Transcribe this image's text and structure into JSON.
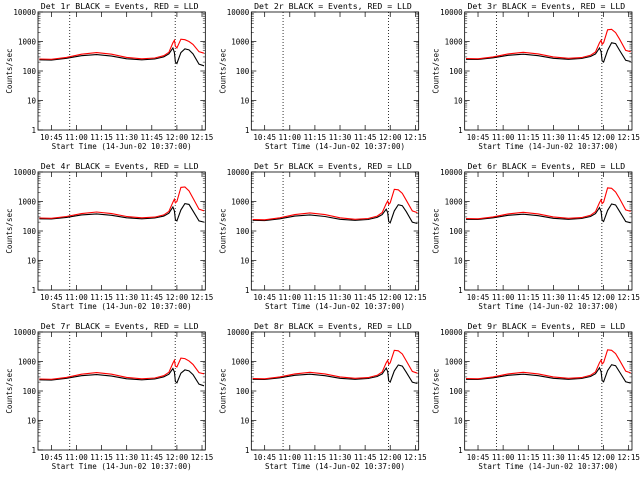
{
  "colors": {
    "events": "#000000",
    "lld": "#ff0000",
    "axes": "#000000",
    "background": "#ffffff"
  },
  "chart_data": [
    {
      "type": "line",
      "id": "det-1r",
      "title": "Det 1r BLACK = Events, RED = LLD",
      "xlabel": "Start Time (14-Jun-02 10:37:00)",
      "ylabel": "Counts/sec",
      "yscale": "log",
      "xlim": [
        10.617,
        12.283
      ],
      "ylim": [
        1,
        10000
      ],
      "xticks": [
        "10:45",
        "11:00",
        "11:15",
        "11:30",
        "11:45",
        "12:00",
        "12:15"
      ],
      "yticks": [
        "1",
        "10",
        "100",
        "1000",
        "10000"
      ],
      "vlines": [
        10.933,
        11.983
      ],
      "series": [
        {
          "name": "Events",
          "x": [
            10.63,
            10.75,
            10.9,
            11.05,
            11.2,
            11.35,
            11.5,
            11.65,
            11.78,
            11.87,
            11.92,
            11.96,
            11.975,
            11.985,
            12.0,
            12.04,
            12.08,
            12.12,
            12.16,
            12.22,
            12.27
          ],
          "y": [
            240,
            235,
            270,
            330,
            360,
            320,
            260,
            240,
            255,
            300,
            380,
            600,
            420,
            200,
            180,
            420,
            560,
            520,
            380,
            170,
            150
          ]
        },
        {
          "name": "LLD",
          "x": [
            10.63,
            10.75,
            10.9,
            11.05,
            11.2,
            11.35,
            11.5,
            11.65,
            11.78,
            11.87,
            11.92,
            11.96,
            11.975,
            11.985,
            12.0,
            12.04,
            12.08,
            12.12,
            12.16,
            12.22,
            12.27
          ],
          "y": [
            255,
            250,
            290,
            370,
            420,
            370,
            290,
            260,
            275,
            330,
            430,
            900,
            1100,
            700,
            600,
            1200,
            1150,
            1000,
            800,
            450,
            400
          ]
        }
      ]
    },
    {
      "type": "line",
      "id": "det-2r",
      "title": "Det 2r BLACK = Events, RED = LLD",
      "xlabel": "Start Time (14-Jun-02 10:37:00)",
      "ylabel": "Counts/sec",
      "yscale": "log",
      "xlim": [
        10.617,
        12.283
      ],
      "ylim": [
        1,
        10000
      ],
      "xticks": [
        "10:45",
        "11:00",
        "11:15",
        "11:30",
        "11:45",
        "12:00",
        "12:15"
      ],
      "yticks": [
        "1",
        "10",
        "100",
        "1000",
        "10000"
      ],
      "vlines": [
        10.933,
        11.983
      ],
      "series": [
        {
          "name": "Events",
          "x": [],
          "y": []
        },
        {
          "name": "LLD",
          "x": [],
          "y": []
        }
      ]
    },
    {
      "type": "line",
      "id": "det-3r",
      "title": "Det 3r BLACK = Events, RED = LLD",
      "xlabel": "Start Time (14-Jun-02 10:37:00)",
      "ylabel": "Counts/sec",
      "yscale": "log",
      "xlim": [
        10.617,
        12.283
      ],
      "ylim": [
        1,
        10000
      ],
      "xticks": [
        "10:45",
        "11:00",
        "11:15",
        "11:30",
        "11:45",
        "12:00",
        "12:15"
      ],
      "yticks": [
        "1",
        "10",
        "100",
        "1000",
        "10000"
      ],
      "vlines": [
        10.933,
        11.983
      ],
      "series": [
        {
          "name": "Events",
          "x": [
            10.63,
            10.75,
            10.9,
            11.05,
            11.2,
            11.35,
            11.5,
            11.65,
            11.78,
            11.87,
            11.92,
            11.96,
            11.975,
            11.985,
            12.0,
            12.04,
            12.08,
            12.12,
            12.16,
            12.22,
            12.27
          ],
          "y": [
            250,
            245,
            280,
            340,
            370,
            330,
            270,
            250,
            265,
            310,
            380,
            600,
            450,
            220,
            200,
            500,
            900,
            850,
            500,
            230,
            210
          ]
        },
        {
          "name": "LLD",
          "x": [
            10.63,
            10.75,
            10.9,
            11.05,
            11.2,
            11.35,
            11.5,
            11.65,
            11.78,
            11.87,
            11.92,
            11.96,
            11.975,
            11.985,
            12.0,
            12.04,
            12.08,
            12.12,
            12.16,
            12.22,
            12.27
          ],
          "y": [
            265,
            260,
            300,
            380,
            430,
            380,
            300,
            270,
            285,
            340,
            440,
            900,
            1100,
            800,
            900,
            2500,
            2600,
            2000,
            1200,
            500,
            450
          ]
        }
      ]
    },
    {
      "type": "line",
      "id": "det-4r",
      "title": "Det 4r BLACK = Events, RED = LLD",
      "xlabel": "Start Time (14-Jun-02 10:37:00)",
      "ylabel": "Counts/sec",
      "yscale": "log",
      "xlim": [
        10.617,
        12.283
      ],
      "ylim": [
        1,
        10000
      ],
      "xticks": [
        "10:45",
        "11:00",
        "11:15",
        "11:30",
        "11:45",
        "12:00",
        "12:15"
      ],
      "yticks": [
        "1",
        "10",
        "100",
        "1000",
        "10000"
      ],
      "vlines": [
        10.933,
        11.983
      ],
      "series": [
        {
          "name": "Events",
          "x": [
            10.63,
            10.75,
            10.9,
            11.05,
            11.2,
            11.35,
            11.5,
            11.65,
            11.78,
            11.87,
            11.92,
            11.96,
            11.975,
            11.985,
            12.0,
            12.04,
            12.08,
            12.12,
            12.16,
            12.22,
            12.27
          ],
          "y": [
            260,
            255,
            290,
            350,
            380,
            340,
            280,
            260,
            275,
            320,
            400,
            650,
            480,
            240,
            220,
            520,
            850,
            800,
            480,
            220,
            200
          ]
        },
        {
          "name": "LLD",
          "x": [
            10.63,
            10.75,
            10.9,
            11.05,
            11.2,
            11.35,
            11.5,
            11.65,
            11.78,
            11.87,
            11.92,
            11.96,
            11.975,
            11.985,
            12.0,
            12.04,
            12.08,
            12.12,
            12.16,
            12.22,
            12.27
          ],
          "y": [
            275,
            270,
            310,
            390,
            440,
            390,
            310,
            280,
            295,
            350,
            460,
            950,
            1200,
            900,
            1000,
            3000,
            3100,
            2300,
            1300,
            550,
            480
          ]
        }
      ]
    },
    {
      "type": "line",
      "id": "det-5r",
      "title": "Det 5r BLACK = Events, RED = LLD",
      "xlabel": "Start Time (14-Jun-02 10:37:00)",
      "ylabel": "Counts/sec",
      "yscale": "log",
      "xlim": [
        10.617,
        12.283
      ],
      "ylim": [
        1,
        10000
      ],
      "xticks": [
        "10:45",
        "11:00",
        "11:15",
        "11:30",
        "11:45",
        "12:00",
        "12:15"
      ],
      "yticks": [
        "1",
        "10",
        "100",
        "1000",
        "10000"
      ],
      "vlines": [
        10.933,
        11.983
      ],
      "series": [
        {
          "name": "Events",
          "x": [
            10.63,
            10.75,
            10.9,
            11.05,
            11.2,
            11.35,
            11.5,
            11.65,
            11.78,
            11.87,
            11.92,
            11.96,
            11.975,
            11.985,
            12.0,
            12.04,
            12.08,
            12.12,
            12.16,
            12.22,
            12.27
          ],
          "y": [
            230,
            225,
            260,
            320,
            350,
            310,
            250,
            230,
            245,
            290,
            360,
            550,
            420,
            210,
            190,
            480,
            780,
            720,
            450,
            200,
            180
          ]
        },
        {
          "name": "LLD",
          "x": [
            10.63,
            10.75,
            10.9,
            11.05,
            11.2,
            11.35,
            11.5,
            11.65,
            11.78,
            11.87,
            11.92,
            11.96,
            11.975,
            11.985,
            12.0,
            12.04,
            12.08,
            12.12,
            12.16,
            12.22,
            12.27
          ],
          "y": [
            245,
            240,
            280,
            360,
            410,
            360,
            280,
            250,
            265,
            320,
            420,
            850,
            1050,
            800,
            900,
            2600,
            2500,
            1900,
            1100,
            480,
            420
          ]
        }
      ]
    },
    {
      "type": "line",
      "id": "det-6r",
      "title": "Det 6r BLACK = Events, RED = LLD",
      "xlabel": "Start Time (14-Jun-02 10:37:00)",
      "ylabel": "Counts/sec",
      "yscale": "log",
      "xlim": [
        10.617,
        12.283
      ],
      "ylim": [
        1,
        10000
      ],
      "xticks": [
        "10:45",
        "11:00",
        "11:15",
        "11:30",
        "11:45",
        "12:00",
        "12:15"
      ],
      "yticks": [
        "1",
        "10",
        "100",
        "1000",
        "10000"
      ],
      "vlines": [
        10.933,
        11.983
      ],
      "series": [
        {
          "name": "Events",
          "x": [
            10.63,
            10.75,
            10.9,
            11.05,
            11.2,
            11.35,
            11.5,
            11.65,
            11.78,
            11.87,
            11.92,
            11.96,
            11.975,
            11.985,
            12.0,
            12.04,
            12.08,
            12.12,
            12.16,
            12.22,
            12.27
          ],
          "y": [
            250,
            245,
            280,
            340,
            370,
            330,
            270,
            250,
            265,
            310,
            390,
            620,
            460,
            230,
            210,
            500,
            820,
            760,
            460,
            210,
            190
          ]
        },
        {
          "name": "LLD",
          "x": [
            10.63,
            10.75,
            10.9,
            11.05,
            11.2,
            11.35,
            11.5,
            11.65,
            11.78,
            11.87,
            11.92,
            11.96,
            11.975,
            11.985,
            12.0,
            12.04,
            12.08,
            12.12,
            12.16,
            12.22,
            12.27
          ],
          "y": [
            265,
            260,
            300,
            380,
            430,
            380,
            300,
            270,
            285,
            340,
            450,
            920,
            1150,
            850,
            950,
            2900,
            2800,
            2100,
            1250,
            520,
            460
          ]
        }
      ]
    },
    {
      "type": "line",
      "id": "det-7r",
      "title": "Det 7r BLACK = Events, RED = LLD",
      "xlabel": "Start Time (14-Jun-02 10:37:00)",
      "ylabel": "Counts/sec",
      "yscale": "log",
      "xlim": [
        10.617,
        12.283
      ],
      "ylim": [
        1,
        10000
      ],
      "xticks": [
        "10:45",
        "11:00",
        "11:15",
        "11:30",
        "11:45",
        "12:00",
        "12:15"
      ],
      "yticks": [
        "1",
        "10",
        "100",
        "1000",
        "10000"
      ],
      "vlines": [
        10.933,
        11.983
      ],
      "series": [
        {
          "name": "Events",
          "x": [
            10.63,
            10.75,
            10.9,
            11.05,
            11.2,
            11.35,
            11.5,
            11.65,
            11.78,
            11.87,
            11.92,
            11.96,
            11.975,
            11.985,
            12.0,
            12.04,
            12.08,
            12.12,
            12.16,
            12.22,
            12.27
          ],
          "y": [
            240,
            235,
            270,
            330,
            360,
            320,
            260,
            240,
            255,
            300,
            370,
            580,
            440,
            210,
            190,
            400,
            520,
            480,
            360,
            170,
            150
          ]
        },
        {
          "name": "LLD",
          "x": [
            10.63,
            10.75,
            10.9,
            11.05,
            11.2,
            11.35,
            11.5,
            11.65,
            11.78,
            11.87,
            11.92,
            11.96,
            11.975,
            11.985,
            12.0,
            12.04,
            12.08,
            12.12,
            12.16,
            12.22,
            12.27
          ],
          "y": [
            255,
            250,
            290,
            370,
            420,
            370,
            290,
            260,
            275,
            330,
            430,
            880,
            1100,
            700,
            650,
            1300,
            1250,
            1050,
            800,
            420,
            380
          ]
        }
      ]
    },
    {
      "type": "line",
      "id": "det-8r",
      "title": "Det 8r BLACK = Events, RED = LLD",
      "xlabel": "Start Time (14-Jun-02 10:37:00)",
      "ylabel": "Counts/sec",
      "yscale": "log",
      "xlim": [
        10.617,
        12.283
      ],
      "ylim": [
        1,
        10000
      ],
      "xticks": [
        "10:45",
        "11:00",
        "11:15",
        "11:30",
        "11:45",
        "12:00",
        "12:15"
      ],
      "yticks": [
        "1",
        "10",
        "100",
        "1000",
        "10000"
      ],
      "vlines": [
        10.933,
        11.983
      ],
      "series": [
        {
          "name": "Events",
          "x": [
            10.63,
            10.75,
            10.9,
            11.05,
            11.2,
            11.35,
            11.5,
            11.65,
            11.78,
            11.87,
            11.92,
            11.96,
            11.975,
            11.985,
            12.0,
            12.04,
            12.08,
            12.12,
            12.16,
            12.22,
            12.27
          ],
          "y": [
            250,
            245,
            280,
            340,
            370,
            330,
            270,
            250,
            265,
            310,
            380,
            600,
            450,
            220,
            200,
            480,
            760,
            700,
            430,
            200,
            180
          ]
        },
        {
          "name": "LLD",
          "x": [
            10.63,
            10.75,
            10.9,
            11.05,
            11.2,
            11.35,
            11.5,
            11.65,
            11.78,
            11.87,
            11.92,
            11.96,
            11.975,
            11.985,
            12.0,
            12.04,
            12.08,
            12.12,
            12.16,
            12.22,
            12.27
          ],
          "y": [
            265,
            260,
            300,
            380,
            430,
            380,
            300,
            270,
            285,
            340,
            440,
            900,
            1100,
            800,
            900,
            2400,
            2300,
            1800,
            1050,
            460,
            400
          ]
        }
      ]
    },
    {
      "type": "line",
      "id": "det-9r",
      "title": "Det 9r BLACK = Events, RED = LLD",
      "xlabel": "Start Time (14-Jun-02 10:37:00)",
      "ylabel": "Counts/sec",
      "yscale": "log",
      "xlim": [
        10.617,
        12.283
      ],
      "ylim": [
        1,
        10000
      ],
      "xticks": [
        "10:45",
        "11:00",
        "11:15",
        "11:30",
        "11:45",
        "12:00",
        "12:15"
      ],
      "yticks": [
        "1",
        "10",
        "100",
        "1000",
        "10000"
      ],
      "vlines": [
        10.933,
        11.983
      ],
      "series": [
        {
          "name": "Events",
          "x": [
            10.63,
            10.75,
            10.9,
            11.05,
            11.2,
            11.35,
            11.5,
            11.65,
            11.78,
            11.87,
            11.92,
            11.96,
            11.975,
            11.985,
            12.0,
            12.04,
            12.08,
            12.12,
            12.16,
            12.22,
            12.27
          ],
          "y": [
            250,
            245,
            280,
            340,
            370,
            330,
            270,
            250,
            265,
            310,
            385,
            610,
            455,
            225,
            205,
            490,
            780,
            720,
            440,
            205,
            185
          ]
        },
        {
          "name": "LLD",
          "x": [
            10.63,
            10.75,
            10.9,
            11.05,
            11.2,
            11.35,
            11.5,
            11.65,
            11.78,
            11.87,
            11.92,
            11.96,
            11.975,
            11.985,
            12.0,
            12.04,
            12.08,
            12.12,
            12.16,
            12.22,
            12.27
          ],
          "y": [
            265,
            260,
            300,
            380,
            430,
            380,
            300,
            270,
            285,
            340,
            445,
            910,
            1120,
            820,
            920,
            2500,
            2400,
            1850,
            1100,
            470,
            410
          ]
        }
      ]
    }
  ]
}
